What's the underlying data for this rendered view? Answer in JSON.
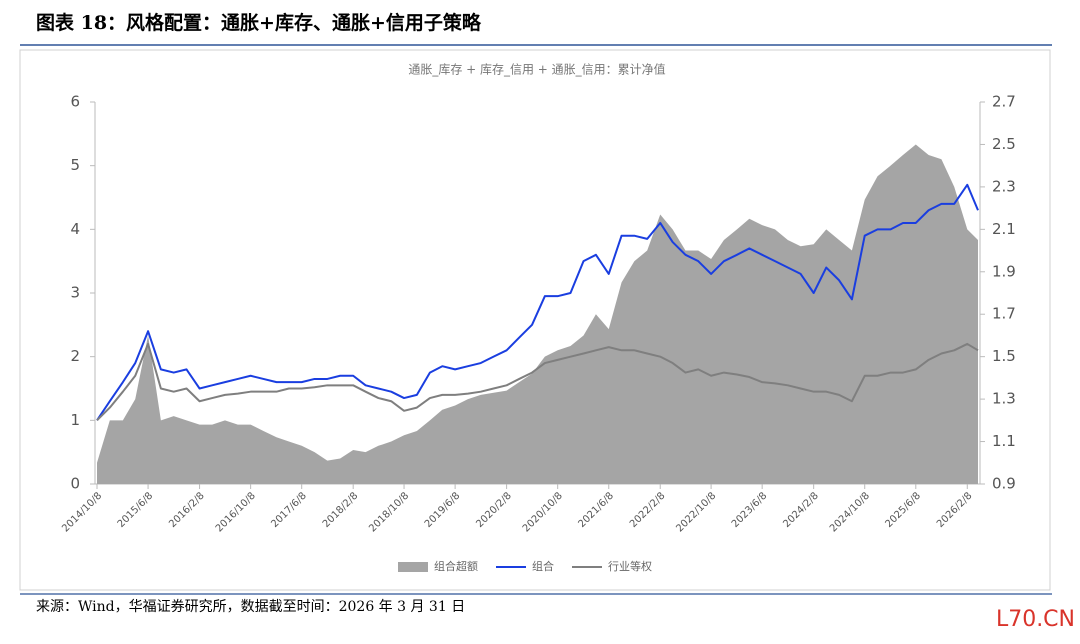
{
  "report_title": "图表 18：风格配置：通胀+库存、通胀+信用子策略",
  "source_note": "来源：Wind，华福证券研究所，数据截至时间：2026 年 3 月 31 日",
  "watermark": "L70.CN",
  "chart_data": {
    "type": "line",
    "title": "通胀_库存 + 库存_信用 + 通胀_信用：累计净值",
    "x": [
      "2014/10/8",
      "2014/12/8",
      "2015/2/8",
      "2015/4/8",
      "2015/6/8",
      "2015/8/8",
      "2015/10/8",
      "2015/12/8",
      "2016/2/8",
      "2016/4/8",
      "2016/6/8",
      "2016/8/8",
      "2016/10/8",
      "2016/12/8",
      "2017/2/8",
      "2017/4/8",
      "2017/6/8",
      "2017/8/8",
      "2017/10/8",
      "2017/12/8",
      "2018/2/8",
      "2018/4/8",
      "2018/6/8",
      "2018/8/8",
      "2018/10/8",
      "2018/12/8",
      "2019/2/8",
      "2019/4/8",
      "2019/6/8",
      "2019/8/8",
      "2019/10/8",
      "2019/12/8",
      "2020/2/8",
      "2020/4/8",
      "2020/6/8",
      "2020/8/8",
      "2020/10/8",
      "2020/12/8",
      "2021/2/8",
      "2021/4/8",
      "2021/6/8",
      "2021/8/8",
      "2021/10/8",
      "2021/12/8",
      "2022/2/8",
      "2022/4/8",
      "2022/6/8",
      "2022/8/8",
      "2022/10/8",
      "2022/12/8",
      "2023/2/8",
      "2023/4/8",
      "2023/6/8",
      "2023/8/8",
      "2023/10/8",
      "2023/12/8",
      "2024/2/8",
      "2024/4/8",
      "2024/6/8",
      "2024/8/8",
      "2024/10/8",
      "2024/12/8",
      "2025/2/8",
      "2025/4/8",
      "2025/6/8",
      "2025/8/8",
      "2025/10/8",
      "2025/12/8",
      "2026/2/8",
      "2026/3/31"
    ],
    "xticks": [
      "2014/10/8",
      "2015/6/8",
      "2016/2/8",
      "2016/10/8",
      "2017/6/8",
      "2018/2/8",
      "2018/10/8",
      "2019/6/8",
      "2020/2/8",
      "2020/10/8",
      "2021/6/8",
      "2022/2/8",
      "2022/10/8",
      "2023/6/8",
      "2024/2/8",
      "2024/10/8",
      "2025/6/8",
      "2026/2/8"
    ],
    "ylim": [
      0,
      6
    ],
    "yticks": [
      0,
      1,
      2,
      3,
      4,
      5,
      6
    ],
    "y2lim": [
      0.9,
      2.7
    ],
    "y2ticks": [
      0.9,
      1.1,
      1.3,
      1.5,
      1.7,
      1.9,
      2.1,
      2.3,
      2.5,
      2.7
    ],
    "legend": "bottom",
    "series": [
      {
        "name": "组合超额",
        "color": "#a5a5a5",
        "kind": "area",
        "axis": "y2",
        "values": [
          1.0,
          1.2,
          1.2,
          1.3,
          1.6,
          1.2,
          1.22,
          1.2,
          1.18,
          1.18,
          1.2,
          1.18,
          1.18,
          1.15,
          1.12,
          1.1,
          1.08,
          1.05,
          1.01,
          1.02,
          1.06,
          1.05,
          1.08,
          1.1,
          1.13,
          1.15,
          1.2,
          1.25,
          1.27,
          1.3,
          1.32,
          1.33,
          1.34,
          1.38,
          1.42,
          1.5,
          1.53,
          1.55,
          1.6,
          1.7,
          1.63,
          1.85,
          1.95,
          2.0,
          2.17,
          2.1,
          2.0,
          2.0,
          1.96,
          2.05,
          2.1,
          2.15,
          2.12,
          2.1,
          2.05,
          2.02,
          2.03,
          2.1,
          2.05,
          2.0,
          2.24,
          2.35,
          2.4,
          2.45,
          2.5,
          2.45,
          2.43,
          2.3,
          2.1,
          2.05
        ]
      },
      {
        "name": "组合",
        "color": "#1a3ee0",
        "kind": "line",
        "values": [
          1.0,
          1.3,
          1.6,
          1.9,
          2.4,
          1.8,
          1.75,
          1.8,
          1.5,
          1.55,
          1.6,
          1.65,
          1.7,
          1.65,
          1.6,
          1.6,
          1.6,
          1.65,
          1.65,
          1.7,
          1.7,
          1.55,
          1.5,
          1.45,
          1.35,
          1.4,
          1.75,
          1.85,
          1.8,
          1.85,
          1.9,
          2.0,
          2.1,
          2.3,
          2.5,
          2.95,
          2.95,
          3.0,
          3.5,
          3.6,
          3.3,
          3.9,
          3.9,
          3.85,
          4.1,
          3.8,
          3.6,
          3.5,
          3.3,
          3.5,
          3.6,
          3.7,
          3.6,
          3.5,
          3.4,
          3.3,
          3.0,
          3.4,
          3.2,
          2.9,
          3.9,
          4.0,
          4.0,
          4.1,
          4.1,
          4.3,
          4.4,
          4.4,
          4.7,
          4.3
        ]
      },
      {
        "name": "行业等权",
        "color": "#7f7f7f",
        "kind": "line",
        "values": [
          1.0,
          1.2,
          1.45,
          1.7,
          2.2,
          1.5,
          1.45,
          1.5,
          1.3,
          1.35,
          1.4,
          1.42,
          1.45,
          1.45,
          1.45,
          1.5,
          1.5,
          1.52,
          1.55,
          1.55,
          1.55,
          1.45,
          1.35,
          1.3,
          1.15,
          1.2,
          1.35,
          1.4,
          1.4,
          1.42,
          1.45,
          1.5,
          1.55,
          1.65,
          1.75,
          1.9,
          1.95,
          2.0,
          2.05,
          2.1,
          2.15,
          2.1,
          2.1,
          2.05,
          2.0,
          1.9,
          1.75,
          1.8,
          1.7,
          1.75,
          1.72,
          1.68,
          1.6,
          1.58,
          1.55,
          1.5,
          1.45,
          1.45,
          1.4,
          1.3,
          1.7,
          1.7,
          1.75,
          1.75,
          1.8,
          1.95,
          2.05,
          2.1,
          2.2,
          2.1
        ]
      }
    ]
  }
}
